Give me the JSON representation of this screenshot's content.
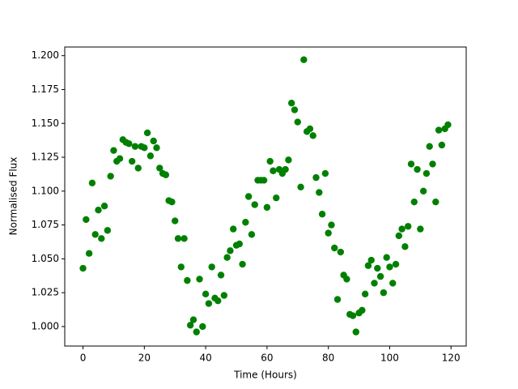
{
  "chart_data": {
    "type": "scatter",
    "x_label": "Time (Hours)",
    "y_label": "Normalised Flux",
    "color": "#008000",
    "x": [
      0,
      1,
      2,
      3,
      4,
      5,
      6,
      7,
      8,
      9,
      10,
      11,
      12,
      13,
      14,
      15,
      16,
      17,
      18,
      19,
      20,
      21,
      22,
      23,
      24,
      25,
      26,
      27,
      28,
      29,
      30,
      31,
      32,
      33,
      34,
      35,
      36,
      37,
      38,
      39,
      40,
      41,
      42,
      43,
      44,
      45,
      46,
      47,
      48,
      49,
      50,
      51,
      52,
      53,
      54,
      55,
      56,
      57,
      58,
      59,
      60,
      61,
      62,
      63,
      64,
      65,
      66,
      67,
      68,
      69,
      70,
      71,
      72,
      73,
      74,
      75,
      76,
      77,
      78,
      79,
      80,
      81,
      82,
      83,
      84,
      85,
      86,
      87,
      88,
      89,
      90,
      91,
      92,
      93,
      94,
      95,
      96,
      97,
      98,
      99,
      100,
      101,
      102,
      103,
      104,
      105,
      106,
      107,
      108,
      109,
      110,
      111,
      112,
      113,
      114,
      115,
      116,
      117,
      118,
      119
    ],
    "values": [
      1.043,
      1.079,
      1.054,
      1.106,
      1.068,
      1.086,
      1.065,
      1.089,
      1.071,
      1.111,
      1.13,
      1.122,
      1.124,
      1.138,
      1.136,
      1.135,
      1.122,
      1.133,
      1.117,
      1.133,
      1.132,
      1.143,
      1.126,
      1.137,
      1.132,
      1.117,
      1.113,
      1.112,
      1.093,
      1.092,
      1.078,
      1.065,
      1.044,
      1.065,
      1.034,
      1.001,
      1.005,
      0.996,
      1.035,
      1.0,
      1.024,
      1.017,
      1.044,
      1.021,
      1.019,
      1.038,
      1.023,
      1.051,
      1.056,
      1.072,
      1.06,
      1.061,
      1.046,
      1.077,
      1.096,
      1.068,
      1.09,
      1.108,
      1.108,
      1.108,
      1.088,
      1.122,
      1.115,
      1.095,
      1.116,
      1.113,
      1.116,
      1.123,
      1.165,
      1.16,
      1.151,
      1.103,
      1.197,
      1.144,
      1.146,
      1.141,
      1.11,
      1.099,
      1.083,
      1.113,
      1.069,
      1.075,
      1.058,
      1.02,
      1.055,
      1.038,
      1.035,
      1.009,
      1.008,
      0.996,
      1.01,
      1.012,
      1.024,
      1.045,
      1.049,
      1.032,
      1.043,
      1.037,
      1.025,
      1.051,
      1.044,
      1.032,
      1.046,
      1.067,
      1.072,
      1.059,
      1.074,
      1.12,
      1.092,
      1.116,
      1.072,
      1.1,
      1.113,
      1.133,
      1.12,
      1.092,
      1.145,
      1.134,
      1.146,
      1.149
    ],
    "xlim": [
      -5.95,
      124.95
    ],
    "xticks": [
      0,
      20,
      40,
      60,
      80,
      100,
      120
    ],
    "ylim": [
      0.9856,
      1.2064
    ],
    "yticks": [
      {
        "value": 1.0,
        "label": "1.000"
      },
      {
        "value": 1.025,
        "label": "1.025"
      },
      {
        "value": 1.05,
        "label": "1.050"
      },
      {
        "value": 1.075,
        "label": "1.075"
      },
      {
        "value": 1.1,
        "label": "1.100"
      },
      {
        "value": 1.125,
        "label": "1.125"
      },
      {
        "value": 1.15,
        "label": "1.150"
      },
      {
        "value": 1.175,
        "label": "1.175"
      },
      {
        "value": 1.2,
        "label": "1.200"
      }
    ],
    "grid": false
  }
}
